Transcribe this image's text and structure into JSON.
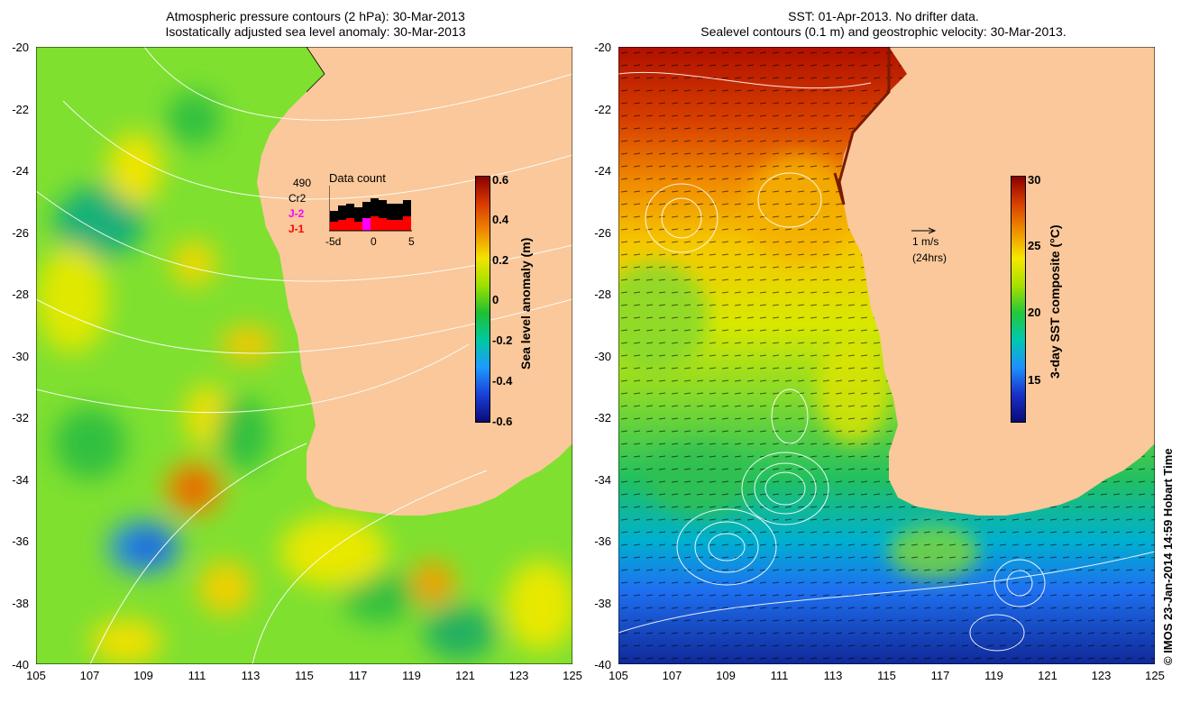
{
  "left_panel": {
    "title_line1": "Atmospheric pressure contours (2 hPa): 30-Mar-2013",
    "title_line2": "Isostatically adjusted sea level anomaly: 30-Mar-2013",
    "colorbar_label": "Sea level anomaly (m)",
    "colorbar_ticks": [
      "0.6",
      "0.4",
      "0.2",
      "0",
      "-0.2",
      "-0.4",
      "-0.6"
    ],
    "colorbar_colors": [
      "#8b0000",
      "#d83a00",
      "#f08a00",
      "#f2e400",
      "#9de000",
      "#1fbf32",
      "#00c8a0",
      "#1e9aff",
      "#1a40d8",
      "#0a0a78"
    ],
    "data_count": {
      "title": "Data count",
      "labels": [
        "490",
        "Cr2",
        "J-2",
        "J-1"
      ],
      "label_colors": [
        "#000000",
        "#000000",
        "#ff00ff",
        "#ff0000"
      ],
      "axis_labels": [
        "-5d",
        "0",
        "5"
      ]
    }
  },
  "right_panel": {
    "title_line1": "SST: 01-Apr-2013. No drifter data.",
    "title_line2": "Sealevel contours (0.1 m) and geostrophic velocity: 30-Mar-2013.",
    "colorbar_label": "3-day SST composite (°C)",
    "colorbar_ticks": [
      "30",
      "25",
      "20",
      "15"
    ],
    "colorbar_colors": [
      "#8b0000",
      "#d84000",
      "#f09000",
      "#f5e800",
      "#a8e000",
      "#22c83a",
      "#00c8b0",
      "#1e90ff",
      "#1a30c8",
      "#0a0a78"
    ],
    "velocity_scale": "1 m/s",
    "velocity_time": "(24hrs)"
  },
  "axes": {
    "y_ticks": [
      "-20",
      "-22",
      "-24",
      "-26",
      "-28",
      "-30",
      "-32",
      "-34",
      "-36",
      "-38",
      "-40"
    ],
    "x_ticks": [
      "105",
      "107",
      "109",
      "111",
      "113",
      "115",
      "117",
      "119",
      "121",
      "123",
      "125"
    ]
  },
  "colors": {
    "land": "#fac89a",
    "ocean_left": "#7fe030",
    "ocean_right": "#58c838"
  },
  "copyright": "© IMOS 23-Jan-2014 14:59 Hobart Time"
}
